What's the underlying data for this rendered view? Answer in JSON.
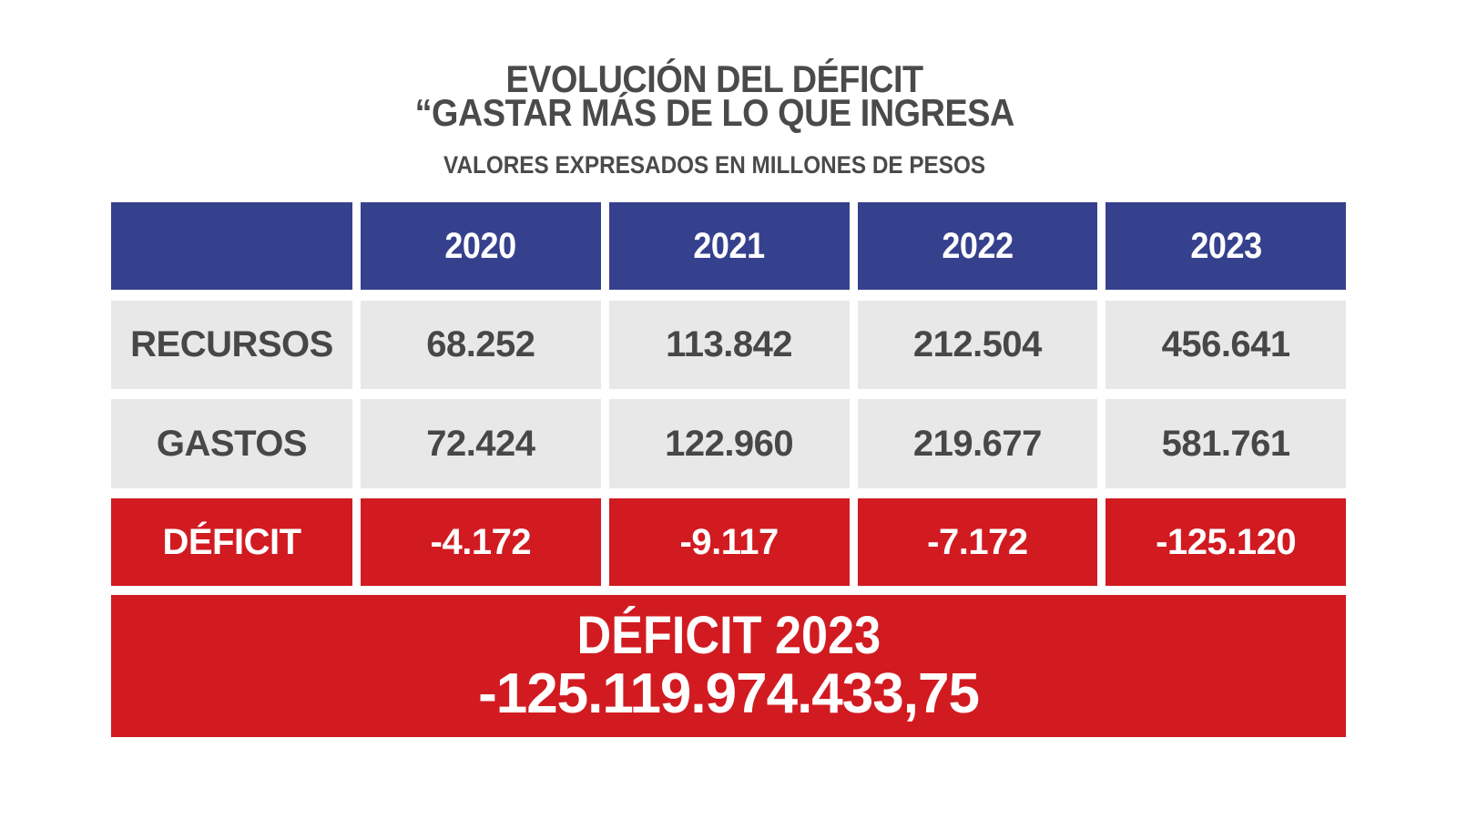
{
  "title": {
    "line1": "EVOLUCIÓN DEL DÉFICIT",
    "line2": "“GASTAR MÁS DE LO QUE INGRESA",
    "subtitle": "VALORES EXPRESADOS EN MILLONES DE PESOS"
  },
  "chart_data": {
    "type": "table",
    "title": "EVOLUCIÓN DEL DÉFICIT “GASTAR MÁS DE LO QUE INGRESA",
    "subtitle": "VALORES EXPRESADOS EN MILLONES DE PESOS",
    "units": "millones de pesos",
    "categories": [
      "2020",
      "2021",
      "2022",
      "2023"
    ],
    "series": [
      {
        "name": "RECURSOS",
        "values": [
          68252,
          113842,
          212504,
          456641
        ],
        "display": [
          "68.252",
          "113.842",
          "212.504",
          "456.641"
        ]
      },
      {
        "name": "GASTOS",
        "values": [
          72424,
          122960,
          219677,
          581761
        ],
        "display": [
          "72.424",
          "122.960",
          "219.677",
          "581.761"
        ]
      },
      {
        "name": "DÉFICIT",
        "values": [
          -4172,
          -9117,
          -7172,
          -125120
        ],
        "display": [
          "-4.172",
          "-9.117",
          "-7.172",
          "-125.120"
        ]
      }
    ],
    "footer": {
      "line1": "DÉFICIT 2023",
      "line2": "-125.119.974.433,75"
    },
    "layout_hints": {
      "header_row_color": "#36418D",
      "data_row_color": "#E8E8E8",
      "deficit_row_color": "#D11B21",
      "grid": "white gaps between cells"
    }
  },
  "colors": {
    "header_bg": "#36418D",
    "row_bg": "#E8E8E8",
    "deficit_bg": "#D11B21",
    "banner_bg": "#D11B21",
    "text_dark": "#474747",
    "text_light": "#FFFFFF"
  }
}
